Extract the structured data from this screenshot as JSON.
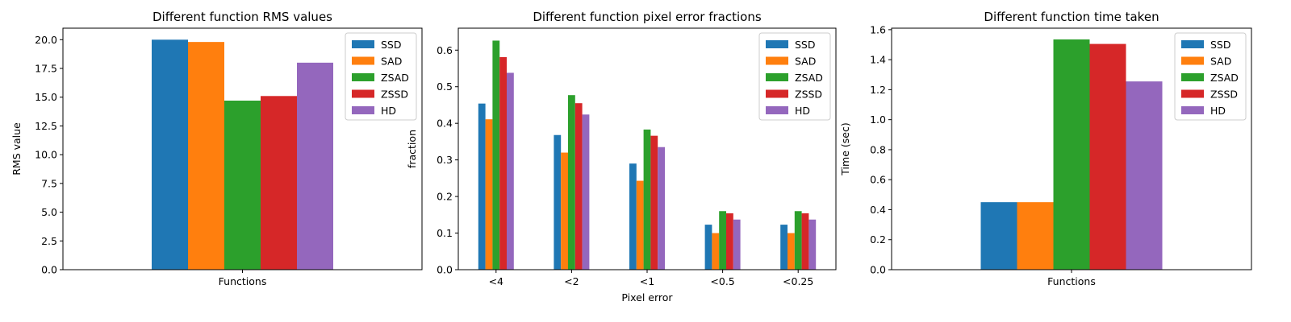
{
  "colors": {
    "SSD": "#1f77b4",
    "SAD": "#ff7f0e",
    "ZSAD": "#2ca02c",
    "ZSSD": "#d62728",
    "HD": "#9467bd"
  },
  "chart_data": [
    {
      "type": "bar",
      "title": "Different function RMS values",
      "xlabel": "",
      "ylabel": "RMS value",
      "categories": [
        "Functions"
      ],
      "ylim": [
        0,
        21
      ],
      "yticks": [
        0.0,
        2.5,
        5.0,
        7.5,
        10.0,
        12.5,
        15.0,
        17.5,
        20.0
      ],
      "ytick_labels": [
        "0.0",
        "2.5",
        "5.0",
        "7.5",
        "10.0",
        "12.5",
        "15.0",
        "17.5",
        "20.0"
      ],
      "legend": "top-right",
      "grid": false,
      "series": [
        {
          "name": "SSD",
          "values": [
            20.0
          ]
        },
        {
          "name": "SAD",
          "values": [
            19.8
          ]
        },
        {
          "name": "ZSAD",
          "values": [
            14.7
          ]
        },
        {
          "name": "ZSSD",
          "values": [
            15.1
          ]
        },
        {
          "name": "HD",
          "values": [
            18.0
          ]
        }
      ]
    },
    {
      "type": "bar",
      "title": "Different function pixel error fractions",
      "xlabel": "Pixel error",
      "ylabel": "fraction",
      "categories": [
        "<4",
        "<2",
        "<1",
        "<0.5",
        "<0.25"
      ],
      "ylim": [
        0,
        0.66
      ],
      "yticks": [
        0.0,
        0.1,
        0.2,
        0.3,
        0.4,
        0.5,
        0.6
      ],
      "ytick_labels": [
        "0.0",
        "0.1",
        "0.2",
        "0.3",
        "0.4",
        "0.5",
        "0.6"
      ],
      "legend": "top-right",
      "grid": false,
      "series": [
        {
          "name": "SSD",
          "values": [
            0.454,
            0.368,
            0.29,
            0.123,
            0.123
          ]
        },
        {
          "name": "SAD",
          "values": [
            0.411,
            0.32,
            0.243,
            0.1,
            0.1
          ]
        },
        {
          "name": "ZSAD",
          "values": [
            0.626,
            0.477,
            0.383,
            0.16,
            0.16
          ]
        },
        {
          "name": "ZSSD",
          "values": [
            0.581,
            0.455,
            0.366,
            0.154,
            0.154
          ]
        },
        {
          "name": "HD",
          "values": [
            0.538,
            0.424,
            0.335,
            0.137,
            0.137
          ]
        }
      ]
    },
    {
      "type": "bar",
      "title": "Different function time taken",
      "xlabel": "",
      "ylabel": "Time (sec)",
      "categories": [
        "Functions"
      ],
      "ylim": [
        0,
        1.61
      ],
      "yticks": [
        0.0,
        0.2,
        0.4,
        0.6,
        0.8,
        1.0,
        1.2,
        1.4,
        1.6
      ],
      "ytick_labels": [
        "0.0",
        "0.2",
        "0.4",
        "0.6",
        "0.8",
        "1.0",
        "1.2",
        "1.4",
        "1.6"
      ],
      "legend": "top-right",
      "grid": false,
      "series": [
        {
          "name": "SSD",
          "values": [
            0.45
          ]
        },
        {
          "name": "SAD",
          "values": [
            0.45
          ]
        },
        {
          "name": "ZSAD",
          "values": [
            1.535
          ]
        },
        {
          "name": "ZSSD",
          "values": [
            1.505
          ]
        },
        {
          "name": "HD",
          "values": [
            1.255
          ]
        }
      ]
    }
  ]
}
